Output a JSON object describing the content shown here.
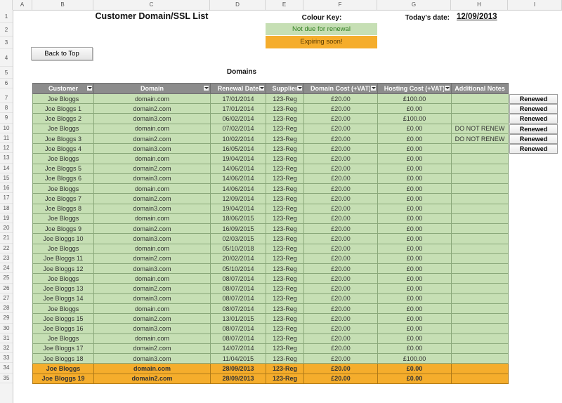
{
  "columns": [
    "A",
    "B",
    "C",
    "D",
    "E",
    "F",
    "G",
    "H",
    "I"
  ],
  "rows": [
    "1",
    "2",
    "3",
    "4",
    "5",
    "6",
    "7",
    "8",
    "9",
    "10",
    "11",
    "12",
    "13",
    "14",
    "15",
    "16",
    "17",
    "18",
    "19",
    "20",
    "21",
    "22",
    "23",
    "24",
    "25",
    "26",
    "27",
    "28",
    "29",
    "30",
    "31",
    "32",
    "33",
    "34",
    "35"
  ],
  "title": "Customer Domain/SSL List",
  "colour_key": {
    "label": "Colour Key:",
    "not_due": "Not due for renewal",
    "expiring": "Expiring soon!",
    "green_color": "#c6dfb4",
    "orange_color": "#f5ad2c"
  },
  "today": {
    "label": "Today's date:",
    "value": "12/09/2013"
  },
  "back_to_top": "Back to Top",
  "section_title": "Domains",
  "table": {
    "headers": [
      "Customer",
      "Domain",
      "Renewal Date",
      "Supplier",
      "Domain Cost (+VAT)",
      "Hosting Cost (+VAT)",
      "Additional Notes"
    ],
    "rows": [
      {
        "status": "green",
        "cells": [
          "Joe Bloggs",
          "domain.com",
          "17/01/2014",
          "123-Reg",
          "£20.00",
          "£100.00",
          ""
        ]
      },
      {
        "status": "green",
        "cells": [
          "Joe Bloggs 1",
          "domain2.com",
          "17/01/2014",
          "123-Reg",
          "£20.00",
          "£0.00",
          ""
        ]
      },
      {
        "status": "green",
        "cells": [
          "Joe Bloggs 2",
          "domain3.com",
          "06/02/2014",
          "123-Reg",
          "£20.00",
          "£100.00",
          ""
        ]
      },
      {
        "status": "green",
        "cells": [
          "Joe Bloggs",
          "domain.com",
          "07/02/2014",
          "123-Reg",
          "£20.00",
          "£0.00",
          "DO NOT RENEW"
        ]
      },
      {
        "status": "green",
        "cells": [
          "Joe Bloggs 3",
          "domain2.com",
          "10/02/2014",
          "123-Reg",
          "£20.00",
          "£0.00",
          "DO NOT RENEW"
        ]
      },
      {
        "status": "green",
        "cells": [
          "Joe Bloggs 4",
          "domain3.com",
          "16/05/2014",
          "123-Reg",
          "£20.00",
          "£0.00",
          ""
        ]
      },
      {
        "status": "green",
        "cells": [
          "Joe Bloggs",
          "domain.com",
          "19/04/2014",
          "123-Reg",
          "£20.00",
          "£0.00",
          ""
        ]
      },
      {
        "status": "green",
        "cells": [
          "Joe Bloggs 5",
          "domain2.com",
          "14/06/2014",
          "123-Reg",
          "£20.00",
          "£0.00",
          ""
        ]
      },
      {
        "status": "green",
        "cells": [
          "Joe Bloggs 6",
          "domain3.com",
          "14/06/2014",
          "123-Reg",
          "£20.00",
          "£0.00",
          ""
        ]
      },
      {
        "status": "green",
        "cells": [
          "Joe Bloggs",
          "domain.com",
          "14/06/2014",
          "123-Reg",
          "£20.00",
          "£0.00",
          ""
        ]
      },
      {
        "status": "green",
        "cells": [
          "Joe Bloggs 7",
          "domain2.com",
          "12/09/2014",
          "123-Reg",
          "£20.00",
          "£0.00",
          ""
        ]
      },
      {
        "status": "green",
        "cells": [
          "Joe Bloggs 8",
          "domain3.com",
          "19/04/2014",
          "123-Reg",
          "£20.00",
          "£0.00",
          ""
        ]
      },
      {
        "status": "green",
        "cells": [
          "Joe Bloggs",
          "domain.com",
          "18/06/2015",
          "123-Reg",
          "£20.00",
          "£0.00",
          ""
        ]
      },
      {
        "status": "green",
        "cells": [
          "Joe Bloggs 9",
          "domain2.com",
          "16/09/2015",
          "123-Reg",
          "£20.00",
          "£0.00",
          ""
        ]
      },
      {
        "status": "green",
        "cells": [
          "Joe Bloggs 10",
          "domain3.com",
          "02/03/2015",
          "123-Reg",
          "£20.00",
          "£0.00",
          ""
        ]
      },
      {
        "status": "green",
        "cells": [
          "Joe Bloggs",
          "domain.com",
          "05/10/2018",
          "123-Reg",
          "£20.00",
          "£0.00",
          ""
        ]
      },
      {
        "status": "green",
        "cells": [
          "Joe Bloggs 11",
          "domain2.com",
          "20/02/2014",
          "123-Reg",
          "£20.00",
          "£0.00",
          ""
        ]
      },
      {
        "status": "green",
        "cells": [
          "Joe Bloggs 12",
          "domain3.com",
          "05/10/2014",
          "123-Reg",
          "£20.00",
          "£0.00",
          ""
        ]
      },
      {
        "status": "green",
        "cells": [
          "Joe Bloggs",
          "domain.com",
          "08/07/2014",
          "123-Reg",
          "£20.00",
          "£0.00",
          ""
        ]
      },
      {
        "status": "green",
        "cells": [
          "Joe Bloggs 13",
          "domain2.com",
          "08/07/2014",
          "123-Reg",
          "£20.00",
          "£0.00",
          ""
        ]
      },
      {
        "status": "green",
        "cells": [
          "Joe Bloggs 14",
          "domain3.com",
          "08/07/2014",
          "123-Reg",
          "£20.00",
          "£0.00",
          ""
        ]
      },
      {
        "status": "green",
        "cells": [
          "Joe Bloggs",
          "domain.com",
          "08/07/2014",
          "123-Reg",
          "£20.00",
          "£0.00",
          ""
        ]
      },
      {
        "status": "green",
        "cells": [
          "Joe Bloggs 15",
          "domain2.com",
          "13/01/2015",
          "123-Reg",
          "£20.00",
          "£0.00",
          ""
        ]
      },
      {
        "status": "green",
        "cells": [
          "Joe Bloggs 16",
          "domain3.com",
          "08/07/2014",
          "123-Reg",
          "£20.00",
          "£0.00",
          ""
        ]
      },
      {
        "status": "green",
        "cells": [
          "Joe Bloggs",
          "domain.com",
          "08/07/2014",
          "123-Reg",
          "£20.00",
          "£0.00",
          ""
        ]
      },
      {
        "status": "green",
        "cells": [
          "Joe Bloggs 17",
          "domain2.com",
          "14/07/2014",
          "123-Reg",
          "£20.00",
          "£0.00",
          ""
        ]
      },
      {
        "status": "green",
        "cells": [
          "Joe Bloggs 18",
          "domain3.com",
          "11/04/2015",
          "123-Reg",
          "£20.00",
          "£100.00",
          ""
        ]
      },
      {
        "status": "orange",
        "cells": [
          "Joe Bloggs",
          "domain.com",
          "28/09/2013",
          "123-Reg",
          "£20.00",
          "£0.00",
          ""
        ]
      },
      {
        "status": "orange",
        "cells": [
          "Joe Bloggs 19",
          "domain2.com",
          "28/09/2013",
          "123-Reg",
          "£20.00",
          "£0.00",
          ""
        ]
      }
    ]
  },
  "renewed_label": "Renewed",
  "renewed_count": 6
}
